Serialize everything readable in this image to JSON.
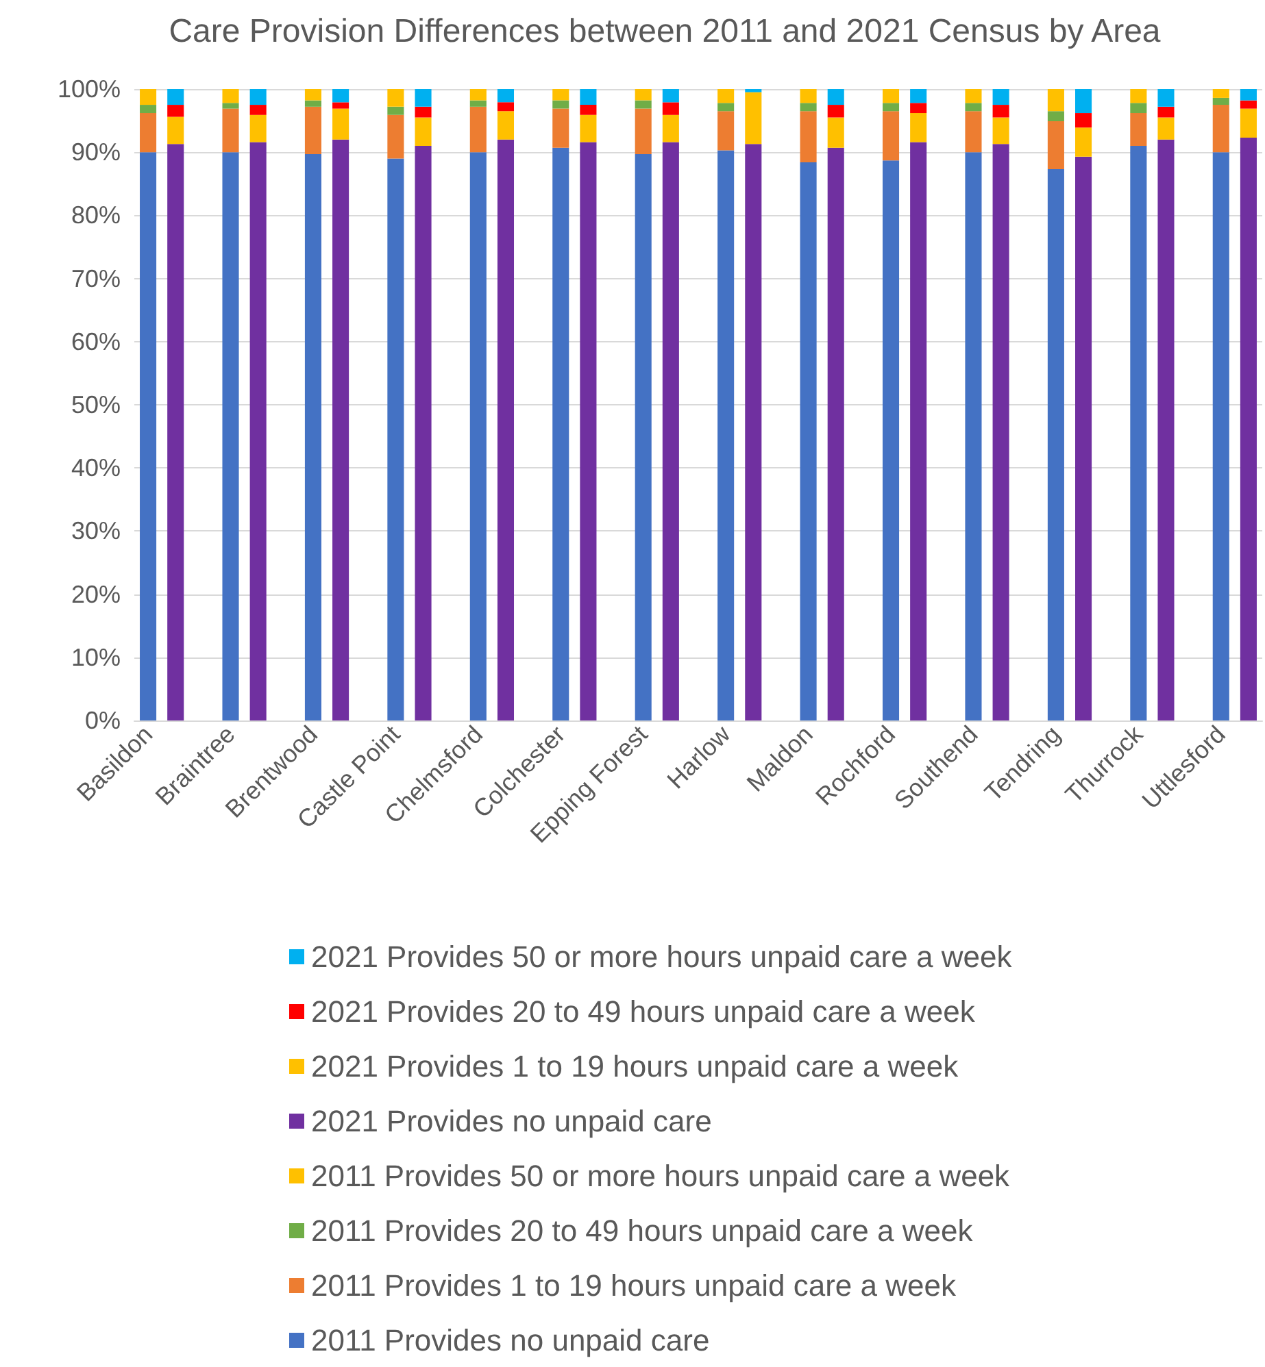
{
  "chart_data": {
    "type": "bar",
    "title": "Care Provision Differences between 2011 and 2021 Census by Area",
    "categories": [
      "Basildon",
      null,
      null,
      "Braintree",
      null,
      null,
      "Brentwood",
      null,
      null,
      "Castle Point",
      null,
      null,
      "Chelmsford",
      null,
      null,
      "Colchester",
      null,
      null,
      "Epping Forest",
      null,
      null,
      "Harlow",
      null,
      null,
      "Maldon",
      null,
      null,
      "Rochford",
      null,
      null,
      "Southend",
      null,
      null,
      "Tendring",
      null,
      null,
      "Thurrock",
      null,
      null,
      "Uttlesford",
      null
    ],
    "series": [
      {
        "name": "2011 Provides no unpaid care",
        "color": "#4472c4",
        "values": [
          90,
          null,
          null,
          90,
          null,
          null,
          89.7,
          null,
          null,
          89,
          null,
          null,
          90,
          null,
          null,
          90.7,
          null,
          null,
          89.7,
          null,
          null,
          90.3,
          null,
          null,
          88.4,
          null,
          null,
          88.7,
          null,
          null,
          90,
          null,
          null,
          87.3,
          null,
          null,
          91,
          null,
          null,
          90,
          null
        ]
      },
      {
        "name": "2011 Provides 1 to 19 hours unpaid care a week",
        "color": "#ed7d31",
        "values": [
          6.2,
          null,
          null,
          6.9,
          null,
          null,
          7.5,
          null,
          null,
          6.9,
          null,
          null,
          7.2,
          null,
          null,
          6.2,
          null,
          null,
          7.2,
          null,
          null,
          6.2,
          null,
          null,
          8.1,
          null,
          null,
          7.8,
          null,
          null,
          6.5,
          null,
          null,
          7.6,
          null,
          null,
          5.2,
          null,
          null,
          7.5,
          null
        ]
      },
      {
        "name": "2011 Provides 20 to 49 hours unpaid care a week",
        "color": "#70ad47",
        "values": [
          1.3,
          null,
          null,
          0.9,
          null,
          null,
          1,
          null,
          null,
          1.3,
          null,
          null,
          1,
          null,
          null,
          1.3,
          null,
          null,
          1.3,
          null,
          null,
          1.3,
          null,
          null,
          1.3,
          null,
          null,
          1.3,
          null,
          null,
          1.3,
          null,
          null,
          1.6,
          null,
          null,
          1.6,
          null,
          null,
          1.1,
          null
        ]
      },
      {
        "name": "2011 Provides 50 or more hours unpaid care a week",
        "color": "#ffc000",
        "values": [
          2.5,
          null,
          null,
          2.2,
          null,
          null,
          1.8,
          null,
          null,
          2.8,
          null,
          null,
          1.8,
          null,
          null,
          1.8,
          null,
          null,
          1.8,
          null,
          null,
          2.2,
          null,
          null,
          2.2,
          null,
          null,
          2.2,
          null,
          null,
          2.2,
          null,
          null,
          3.5,
          null,
          null,
          2.2,
          null,
          null,
          1.4,
          null
        ]
      },
      {
        "name": "2021 Provides no unpaid care",
        "color": "#7030a0",
        "values": [
          null,
          91.3,
          null,
          null,
          91.6,
          null,
          null,
          92,
          null,
          null,
          91,
          null,
          null,
          92,
          null,
          null,
          91.6,
          null,
          null,
          91.6,
          null,
          null,
          91.3,
          null,
          null,
          90.7,
          null,
          null,
          91.6,
          null,
          null,
          91.3,
          null,
          null,
          89.3,
          null,
          null,
          92,
          null,
          null,
          92.3
        ]
      },
      {
        "name": "2021 Provides 1 to 19 hours unpaid care a week",
        "color": "#ffc000",
        "values": [
          null,
          4.3,
          null,
          null,
          4.3,
          null,
          null,
          4.9,
          null,
          null,
          4.5,
          null,
          null,
          4.5,
          null,
          null,
          4.3,
          null,
          null,
          4.3,
          null,
          null,
          8.2,
          null,
          null,
          4.8,
          null,
          null,
          4.6,
          null,
          null,
          4.2,
          null,
          null,
          4.6,
          null,
          null,
          3.5,
          null,
          null,
          4.6
        ]
      },
      {
        "name": "2021 Provides 20 to 49 hours unpaid care a week",
        "color": "#ff0000",
        "values": [
          null,
          1.9,
          null,
          null,
          1.6,
          null,
          null,
          1,
          null,
          null,
          1.7,
          null,
          null,
          1.4,
          null,
          null,
          1.6,
          null,
          null,
          2,
          null,
          null,
          0,
          null,
          null,
          2,
          null,
          null,
          1.6,
          null,
          null,
          2,
          null,
          null,
          2.3,
          null,
          null,
          1.7,
          null,
          null,
          1.3
        ]
      },
      {
        "name": "2021 Provides 50 or more hours unpaid care a week",
        "color": "#00b0f0",
        "values": [
          null,
          2.5,
          null,
          null,
          2.5,
          null,
          null,
          2.1,
          null,
          null,
          2.8,
          null,
          null,
          2.1,
          null,
          null,
          2.5,
          null,
          null,
          2.1,
          null,
          null,
          0.5,
          null,
          null,
          2.5,
          null,
          null,
          2.2,
          null,
          null,
          2.5,
          null,
          null,
          3.8,
          null,
          null,
          2.8,
          null,
          null,
          1.8
        ]
      }
    ],
    "stacked": true,
    "ylim": [
      0,
      100
    ],
    "yticks": [
      {
        "value": 0,
        "label": "0%"
      },
      {
        "value": 10,
        "label": "10%"
      },
      {
        "value": 20,
        "label": "20%"
      },
      {
        "value": 30,
        "label": "30%"
      },
      {
        "value": 40,
        "label": "40%"
      },
      {
        "value": 50,
        "label": "50%"
      },
      {
        "value": 60,
        "label": "60%"
      },
      {
        "value": 70,
        "label": "70%"
      },
      {
        "value": 80,
        "label": "80%"
      },
      {
        "value": 90,
        "label": "90%"
      },
      {
        "value": 100,
        "label": "100%"
      }
    ],
    "grid": "y",
    "legend": "bottom"
  }
}
